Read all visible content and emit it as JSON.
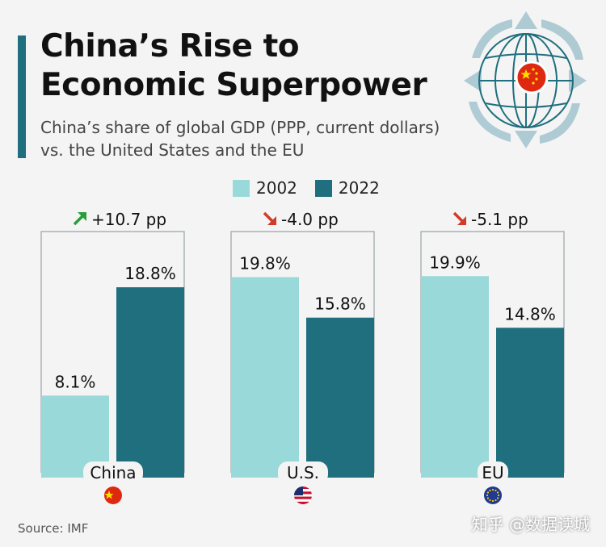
{
  "title_line1": "China’s Rise to",
  "title_line2": "Economic Superpower",
  "subtitle_line1": "China’s share of global GDP (PPP, current dollars)",
  "subtitle_line2": "vs. the United States and the EU",
  "source": "Source: IMF",
  "watermark": "知乎 @数据读城",
  "colors": {
    "series_2002": "#9ad9d9",
    "series_2022": "#1f6f7e",
    "up_arrow": "#2a9d3a",
    "down_arrow": "#d23a2a",
    "accent": "#1f6f7e"
  },
  "icons": {
    "header": "globe-with-china-flag-icon",
    "china": "china-flag-icon",
    "us": "us-flag-icon",
    "eu": "eu-flag-icon"
  },
  "chart_data": {
    "type": "bar",
    "categories": [
      "China",
      "U.S.",
      "EU"
    ],
    "series": [
      {
        "name": "2002",
        "values": [
          8.1,
          19.8,
          19.9
        ],
        "labels": [
          "8.1%",
          "19.8%",
          "19.9%"
        ]
      },
      {
        "name": "2022",
        "values": [
          18.8,
          15.8,
          14.8
        ],
        "labels": [
          "18.8%",
          "15.8%",
          "14.8%"
        ]
      }
    ],
    "changes": [
      "+10.7 pp",
      "-4.0 pp",
      "-5.1 pp"
    ],
    "change_direction": [
      "up",
      "down",
      "down"
    ],
    "ylim": [
      0,
      23
    ],
    "grid": false,
    "legend_position": "top-center"
  }
}
